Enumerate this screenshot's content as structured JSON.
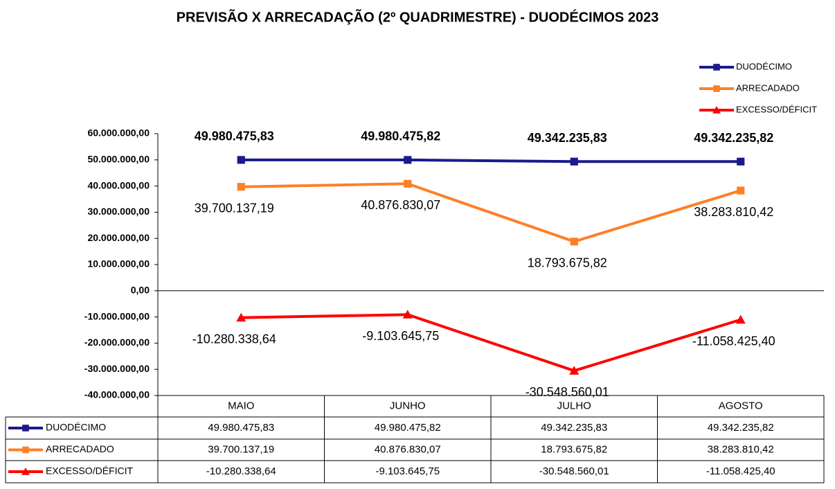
{
  "chart_data": {
    "type": "line",
    "title": "PREVISÃO X ARRECADAÇÃO (2º QUADRIMESTRE) -   DUODÉCIMOS 2023",
    "categories": [
      "MAIO",
      "JUNHO",
      "JULHO",
      "AGOSTO"
    ],
    "series": [
      {
        "name": "DUODÉCIMO",
        "color": "#1a1a8c",
        "marker": "square",
        "values": [
          49980475.83,
          49980475.82,
          49342235.83,
          49342235.82
        ],
        "value_labels": [
          "49.980.475,83",
          "49.980.475,82",
          "49.342.235,83",
          "49.342.235,82"
        ]
      },
      {
        "name": "ARRECADADO",
        "color": "#ff7f27",
        "marker": "square",
        "values": [
          39700137.19,
          40876830.07,
          18793675.82,
          38283810.42
        ],
        "value_labels": [
          "39.700.137,19",
          "40.876.830,07",
          "18.793.675,82",
          "38.283.810,42"
        ]
      },
      {
        "name": "EXCESSO/DÉFICIT",
        "color": "#ff0000",
        "marker": "triangle",
        "values": [
          -10280338.64,
          -9103645.75,
          -30548560.01,
          -11058425.4
        ],
        "value_labels": [
          "-10.280.338,64",
          "-9.103.645,75",
          "-30.548.560,01",
          "-11.058.425,40"
        ]
      }
    ],
    "ylim": [
      -40000000,
      60000000
    ],
    "yticks": [
      {
        "value": -40000000,
        "label": "-40.000.000,00"
      },
      {
        "value": -30000000,
        "label": "-30.000.000,00"
      },
      {
        "value": -20000000,
        "label": "-20.000.000,00"
      },
      {
        "value": -10000000,
        "label": "-10.000.000,00"
      },
      {
        "value": 0,
        "label": "0,00"
      },
      {
        "value": 10000000,
        "label": "10.000.000,00"
      },
      {
        "value": 20000000,
        "label": "20.000.000,00"
      },
      {
        "value": 30000000,
        "label": "30.000.000,00"
      },
      {
        "value": 40000000,
        "label": "40.000.000,00"
      },
      {
        "value": 50000000,
        "label": "50.000.000,00"
      },
      {
        "value": 60000000,
        "label": "60.000.000,00"
      }
    ],
    "legend": "top-right",
    "grid": false
  }
}
